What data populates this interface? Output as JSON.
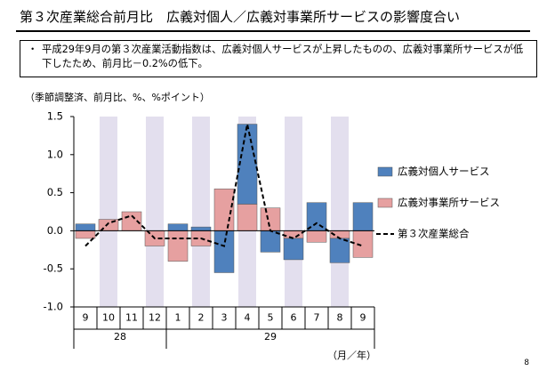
{
  "chart_data": {
    "type": "bar",
    "title": "第３次産業総合前月比　広義対個人／広義対事業所サービスの影響度合い",
    "note": "平成29年9月の第３次産業活動指数は、広義対個人サービスが上昇したものの、広義対事業所サービスが低下したため、前月比－0.2%の低下。",
    "y_axis_label": "（季節調整済、前月比、%、%ポイント）",
    "x_axis_label": "（月／年）",
    "categories": [
      "9",
      "10",
      "11",
      "12",
      "1",
      "2",
      "3",
      "4",
      "5",
      "6",
      "7",
      "8",
      "9"
    ],
    "year_categories": [
      "28",
      null,
      null,
      null,
      "29",
      null,
      null,
      null,
      null,
      null,
      null,
      null,
      null
    ],
    "ylim": [
      -1.0,
      1.5
    ],
    "yticks": [
      {
        "value": -1.0,
        "label": "-1.0"
      },
      {
        "value": -0.5,
        "label": "-0.5"
      },
      {
        "value": 0,
        "label": "0.0"
      },
      {
        "value": 0.5,
        "label": "0.5"
      },
      {
        "value": 1.0,
        "label": "1.0"
      },
      {
        "value": 1.5,
        "label": "1.5"
      }
    ],
    "series": [
      {
        "name": "広義対個人サービス",
        "type": "bar",
        "color": "#4f81bd",
        "values": [
          0.09,
          0.0,
          0.0,
          0.0,
          0.09,
          0.05,
          -0.55,
          1.05,
          -0.28,
          -0.28,
          0.37,
          -0.32,
          0.37
        ]
      },
      {
        "name": "広義対事業所サービス",
        "type": "bar",
        "color": "#e6a0a0",
        "values": [
          -0.1,
          0.15,
          0.25,
          -0.2,
          -0.4,
          -0.2,
          0.55,
          0.35,
          0.3,
          -0.1,
          -0.15,
          -0.1,
          -0.35
        ]
      },
      {
        "name": "第３次産業総合",
        "type": "line",
        "color": "#000000",
        "values": [
          -0.2,
          0.1,
          0.2,
          -0.1,
          -0.1,
          -0.1,
          -0.2,
          1.4,
          0.0,
          -0.1,
          0.1,
          -0.1,
          -0.2
        ]
      }
    ]
  },
  "page_number": "8"
}
